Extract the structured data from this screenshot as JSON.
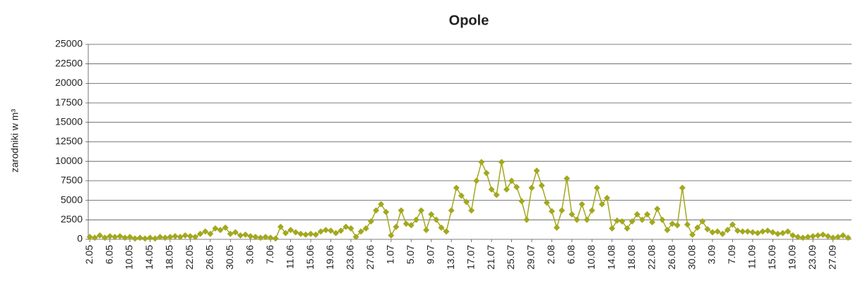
{
  "chart_data": {
    "type": "line",
    "title": "Opole",
    "ylabel": "zarodniki w m³",
    "categories": [
      "2.05",
      null,
      null,
      null,
      "6.05",
      null,
      null,
      null,
      "10.05",
      null,
      null,
      null,
      "14.05",
      null,
      null,
      null,
      "18.05",
      null,
      null,
      null,
      "22.05",
      null,
      null,
      null,
      "26.05",
      null,
      null,
      null,
      "30.05",
      null,
      null,
      null,
      "3.06",
      null,
      null,
      null,
      "7.06",
      null,
      null,
      null,
      "11.06",
      null,
      null,
      null,
      "15.06",
      null,
      null,
      null,
      "19.06",
      null,
      null,
      null,
      "23.06",
      null,
      null,
      null,
      "27.06",
      null,
      null,
      null,
      "1.07",
      null,
      null,
      null,
      "5.07",
      null,
      null,
      null,
      "9.07",
      null,
      null,
      null,
      "13.07",
      null,
      null,
      null,
      "17.07",
      null,
      null,
      null,
      "21.07",
      null,
      null,
      null,
      "25.07",
      null,
      null,
      null,
      "29.07",
      null,
      null,
      null,
      "2.08",
      null,
      null,
      null,
      "6.08",
      null,
      null,
      null,
      "10.08",
      null,
      null,
      null,
      "14.08",
      null,
      null,
      null,
      "18.08",
      null,
      null,
      null,
      "22.08",
      null,
      null,
      null,
      "26.08",
      null,
      null,
      null,
      "30.08",
      null,
      null,
      null,
      "3.09",
      null,
      null,
      null,
      "7.09",
      null,
      null,
      null,
      "11.09",
      null,
      null,
      null,
      "15.09",
      null,
      null,
      null,
      "19.09",
      null,
      null,
      null,
      "23.09",
      null,
      null,
      null,
      "27.09",
      null,
      null,
      null
    ],
    "series": [
      {
        "name": "Opole",
        "color": "#a3a81e",
        "values": [
          300,
          200,
          500,
          200,
          400,
          300,
          400,
          200,
          300,
          100,
          200,
          100,
          200,
          100,
          300,
          200,
          300,
          400,
          300,
          500,
          400,
          300,
          700,
          1000,
          700,
          1400,
          1200,
          1500,
          700,
          900,
          500,
          600,
          400,
          300,
          200,
          300,
          200,
          100,
          1600,
          800,
          1200,
          900,
          700,
          600,
          700,
          600,
          1000,
          1200,
          1100,
          800,
          1100,
          1600,
          1400,
          300,
          1000,
          1400,
          2300,
          3700,
          4500,
          3500,
          500,
          1600,
          3700,
          2000,
          1800,
          2500,
          3700,
          1200,
          3200,
          2500,
          1500,
          1000,
          3700,
          6600,
          5600,
          4800,
          3700,
          7500,
          9900,
          8500,
          6400,
          5700,
          9900,
          6400,
          7500,
          6700,
          4900,
          2500,
          6600,
          8800,
          6900,
          4700,
          3600,
          1500,
          3700,
          7800,
          3200,
          2500,
          4500,
          2500,
          3700,
          6600,
          4500,
          5300,
          1400,
          2400,
          2300,
          1400,
          2300,
          3200,
          2500,
          3200,
          2200,
          3900,
          2500,
          1200,
          2000,
          1800,
          6600,
          1900,
          600,
          1500,
          2300,
          1300,
          900,
          1000,
          700,
          1200,
          1900,
          1100,
          1000,
          1000,
          900,
          800,
          1000,
          1100,
          900,
          700,
          800,
          1000,
          500,
          300,
          200,
          300,
          400,
          500,
          600,
          400,
          200,
          300,
          500,
          200
        ]
      }
    ],
    "ylim": [
      0,
      25000
    ],
    "yticks": [
      0,
      2500,
      5000,
      7500,
      10000,
      12500,
      15000,
      17500,
      20000,
      22500,
      25000
    ],
    "grid": true
  }
}
